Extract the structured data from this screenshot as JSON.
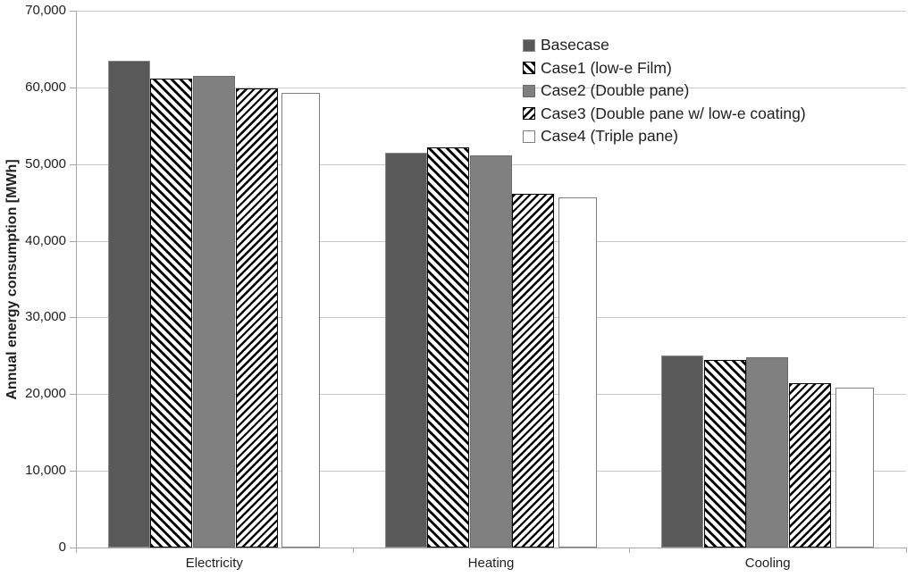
{
  "chart_data": {
    "type": "bar",
    "title": "",
    "xlabel": "",
    "ylabel": "Annual energy consumption [MWh]",
    "ylim": [
      0,
      70000
    ],
    "ytick_step": 10000,
    "ytick_labels": [
      "0",
      "10,000",
      "20,000",
      "30,000",
      "40,000",
      "50,000",
      "60,000",
      "70,000"
    ],
    "grid": "horizontal",
    "legend_position": "inside-top-right",
    "categories": [
      "Electricity",
      "Heating",
      "Cooling"
    ],
    "series": [
      {
        "name": "Basecase",
        "key": "basecase",
        "values": [
          63500,
          51500,
          25100
        ],
        "fill": "#595959",
        "pattern": "solid",
        "border": "#8c8c8c"
      },
      {
        "name": "Case1 (low-e Film)",
        "key": "case1",
        "values": [
          61100,
          52200,
          24500
        ],
        "fill": "#ffffff",
        "pattern": "hatch-backslash",
        "hatch_color": "#000000",
        "border": "#000000"
      },
      {
        "name": "Case2 (Double pane)",
        "key": "case2",
        "values": [
          61500,
          51100,
          24800
        ],
        "fill": "#808080",
        "pattern": "solid",
        "border": "#6b6b6b"
      },
      {
        "name": "Case3 (Double pane w/ low-e coating)",
        "key": "case3",
        "values": [
          59900,
          46100,
          21400
        ],
        "fill": "#ffffff",
        "pattern": "hatch-forwardslash",
        "hatch_color": "#000000",
        "border": "#000000"
      },
      {
        "name": "Case4 (Triple pane)",
        "key": "case4",
        "values": [
          59300,
          45700,
          20900
        ],
        "fill": "#ffffff",
        "pattern": "none",
        "border": "#808080"
      }
    ]
  }
}
